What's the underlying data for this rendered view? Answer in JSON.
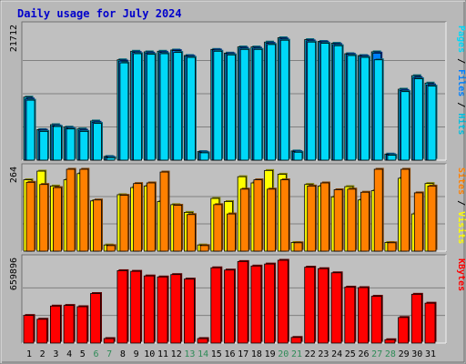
{
  "chart_data": {
    "type": "bar",
    "title": "Daily usage for July 2024",
    "colors": {
      "hits": "#00c0e0",
      "files": "#0080ff",
      "pages": "#00d8f8",
      "sites": "#ff8000",
      "visits": "#ffff00",
      "kbytes": "#ff0000",
      "weekend_label": "#2e8b57",
      "weekday_label": "#000000",
      "panel_bg": "#c0c0c0",
      "frame_bg": "#b8b8b8"
    },
    "categories": [
      "1",
      "2",
      "3",
      "4",
      "5",
      "6",
      "7",
      "8",
      "9",
      "10",
      "11",
      "12",
      "13",
      "14",
      "15",
      "16",
      "17",
      "18",
      "19",
      "20",
      "21",
      "22",
      "23",
      "24",
      "25",
      "26",
      "27",
      "28",
      "29",
      "30",
      "31"
    ],
    "weekend_days": [
      "6",
      "7",
      "13",
      "14",
      "20",
      "21",
      "27",
      "28"
    ],
    "panels": [
      {
        "key": "hits",
        "ymax": 21712,
        "ymax_label": "21712",
        "right_label_parts": [
          {
            "text": "Pages",
            "color": "#00d8f8"
          },
          {
            "text": " / ",
            "color": "#000000"
          },
          {
            "text": "Files",
            "color": "#0080ff"
          },
          {
            "text": " / ",
            "color": "#000000"
          },
          {
            "text": "Hits",
            "color": "#00c0e0"
          }
        ],
        "series": [
          {
            "name": "Hits",
            "values": [
              10300,
              5000,
              5800,
              5400,
              5100,
              6400,
              600,
              16400,
              17800,
              17700,
              17800,
              18000,
              17100,
              1400,
              18100,
              17500,
              18500,
              18500,
              19300,
              20000,
              1500,
              19700,
              19400,
              19100,
              17400,
              17100,
              17700,
              1000,
              11600,
              13800,
              12600
            ]
          },
          {
            "name": "Files",
            "values": [
              10000,
              4900,
              5600,
              5200,
              4900,
              6200,
              500,
              16200,
              17600,
              17500,
              17600,
              17900,
              17000,
              1300,
              18000,
              17400,
              18300,
              18300,
              19100,
              19800,
              1400,
              19500,
              19300,
              18900,
              17300,
              17000,
              17500,
              900,
              11400,
              13500,
              12300
            ]
          },
          {
            "name": "Pages",
            "values": [
              9800,
              4700,
              5500,
              5100,
              4700,
              6000,
              400,
              15900,
              17400,
              17300,
              17400,
              17600,
              16800,
              1200,
              17800,
              17200,
              18100,
              18100,
              18900,
              19600,
              1300,
              19300,
              19100,
              18700,
              17100,
              16800,
              16400,
              800,
              11200,
              13300,
              12100
            ]
          }
        ]
      },
      {
        "key": "sites",
        "ymax": 264,
        "ymax_label": "264",
        "right_label_parts": [
          {
            "text": "Sites",
            "color": "#ff8000"
          },
          {
            "text": " / ",
            "color": "#000000"
          },
          {
            "text": "Visits",
            "color": "#ffff00"
          }
        ],
        "series": [
          {
            "name": "Visits",
            "values": [
              230,
              258,
              210,
              230,
              250,
              162,
              20,
              182,
              205,
              210,
              160,
              150,
              125,
              20,
              170,
              160,
              240,
              220,
              260,
              248,
              28,
              215,
              210,
              175,
              208,
              165,
              195,
              28,
              235,
              120,
              218
            ]
          },
          {
            "name": "Sites",
            "values": [
              222,
              215,
              205,
              265,
              268,
              165,
              18,
              180,
              218,
              220,
              255,
              148,
              118,
              18,
              150,
              120,
              200,
              230,
              200,
              230,
              27,
              210,
              220,
              198,
              200,
              190,
              265,
              27,
              265,
              188,
              210
            ]
          }
        ]
      },
      {
        "key": "kbytes",
        "ymax": 659896,
        "ymax_label": "659896",
        "right_label_parts": [
          {
            "text": "KBytes",
            "color": "#ff0000"
          }
        ],
        "series": [
          {
            "name": "KBytes",
            "values": [
              220000,
              190000,
              295000,
              300000,
              290000,
              395000,
              36000,
              577000,
              572000,
              535000,
              527000,
              546000,
              510000,
              36000,
              600000,
              582000,
              650000,
              614000,
              630000,
              666000,
              45000,
              605000,
              593000,
              560000,
              446000,
              442000,
              373000,
              27000,
              204000,
              389000,
              318000
            ]
          }
        ]
      }
    ]
  }
}
